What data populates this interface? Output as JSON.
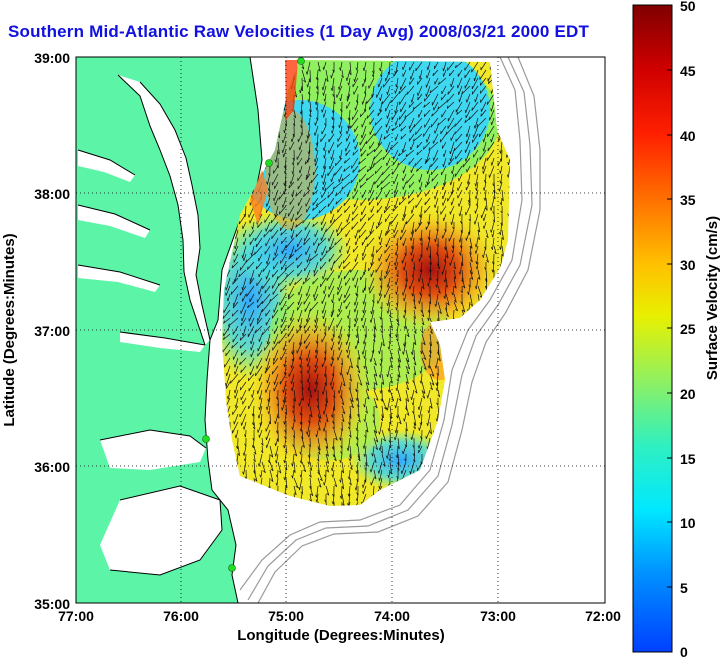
{
  "title": "Southern Mid-Atlantic Raw Velocities (1 Day Avg) 2008/03/21 2000 EDT",
  "x_axis": {
    "label": "Longitude (Degrees:Minutes)",
    "ticks": [
      "77:00",
      "76:00",
      "75:00",
      "74:00",
      "73:00",
      "72:00"
    ]
  },
  "y_axis": {
    "label": "Latitude (Degrees:Minutes)",
    "ticks": [
      "39:00",
      "38:00",
      "37:00",
      "36:00",
      "35:00"
    ]
  },
  "colorbar": {
    "label": "Surface Velocity (cm/s)",
    "ticks": [
      "50",
      "45",
      "40",
      "35",
      "30",
      "25",
      "20",
      "15",
      "10",
      "5",
      "0"
    ],
    "min": 0,
    "max": 50
  },
  "colors": {
    "land": "#5cf5a8",
    "title": "#1010e0",
    "station": "#22dd22"
  },
  "map_extent": {
    "lon": [
      -77,
      -72
    ],
    "lat": [
      35,
      39
    ]
  }
}
